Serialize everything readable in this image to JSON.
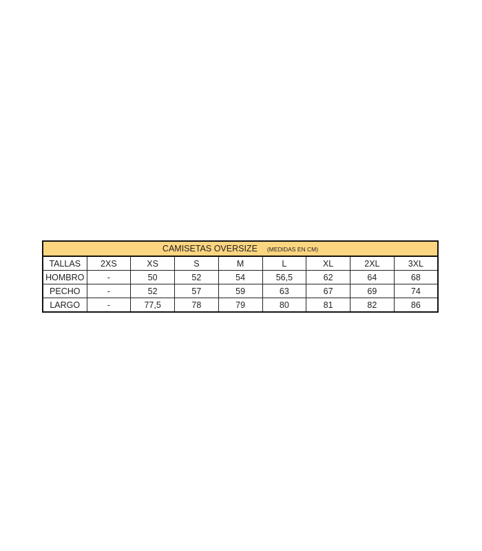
{
  "table": {
    "title": "CAMISETAS  OVERSIZE",
    "subtitle": "(MEDIDAS EN CM)",
    "header": [
      "TALLAS",
      "2XS",
      "XS",
      "S",
      "M",
      "L",
      "XL",
      "2XL",
      "3XL"
    ],
    "rows": [
      [
        "HOMBRO",
        "-",
        "50",
        "52",
        "54",
        "56,5",
        "62",
        "64",
        "68"
      ],
      [
        "PECHO",
        "-",
        "52",
        "57",
        "59",
        "63",
        "67",
        "69",
        "74"
      ],
      [
        "LARGO",
        "-",
        "77,5",
        "78",
        "79",
        "80",
        "81",
        "82",
        "86"
      ]
    ]
  }
}
